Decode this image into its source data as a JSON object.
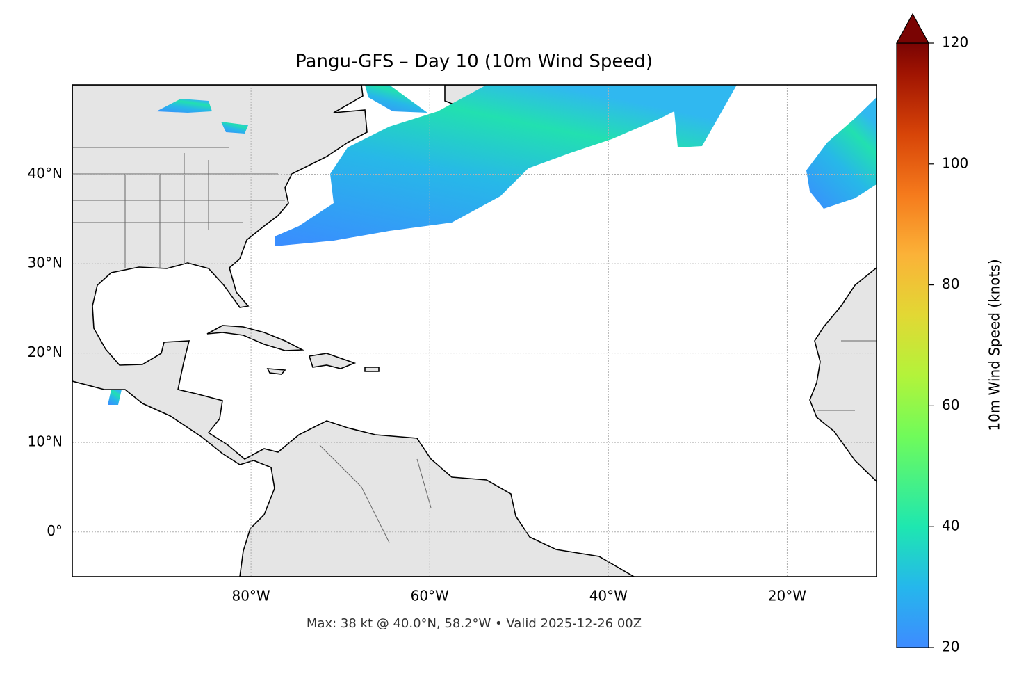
{
  "chart_data": {
    "type": "map",
    "title": "Pangu-GFS – Day 10 (10m Wind Speed)",
    "xlim": [
      -100,
      -10
    ],
    "ylim": [
      -5,
      50
    ],
    "xticks": [
      {
        "value": -80,
        "label": "80°W"
      },
      {
        "value": -60,
        "label": "60°W"
      },
      {
        "value": -40,
        "label": "40°W"
      },
      {
        "value": -20,
        "label": "20°W"
      }
    ],
    "yticks": [
      {
        "value": 0,
        "label": "0°"
      },
      {
        "value": 10,
        "label": "10°N"
      },
      {
        "value": 20,
        "label": "20°N"
      },
      {
        "value": 30,
        "label": "30°N"
      },
      {
        "value": 40,
        "label": "40°N"
      }
    ],
    "grid": true,
    "colorbar": {
      "label": "10m Wind Speed (knots)",
      "lim": [
        20,
        120
      ],
      "ticks": [
        20,
        40,
        60,
        80,
        100,
        120
      ]
    },
    "annotation": "Max: 38 kt @ 40.0°N, 58.2°W • Valid 2025-12-26 00Z"
  }
}
